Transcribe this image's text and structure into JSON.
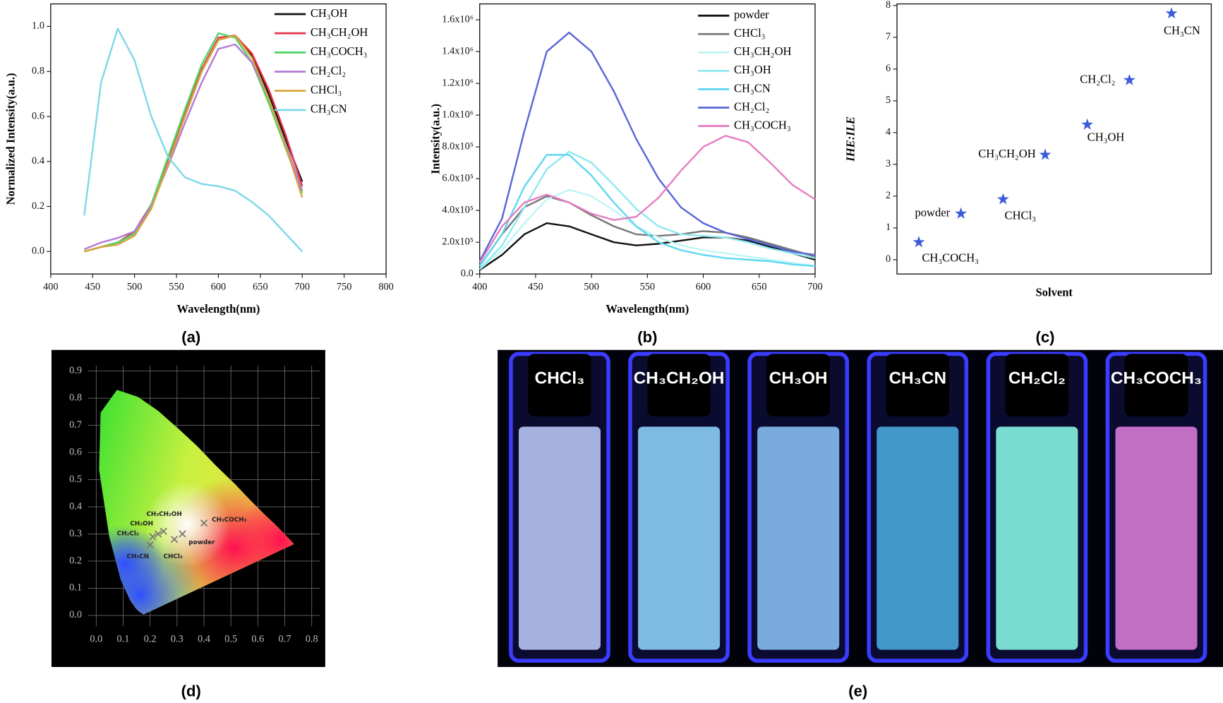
{
  "chart_data": [
    {
      "type": "line",
      "caption": "(a)",
      "x_label": "Wavelength(nm)",
      "y_label": "Normalized Intensity(a.u.)",
      "x": [
        440,
        460,
        480,
        500,
        520,
        540,
        560,
        580,
        600,
        620,
        640,
        660,
        680,
        700
      ],
      "xlim": [
        400,
        800
      ],
      "xticks": [
        400,
        450,
        500,
        550,
        600,
        650,
        700,
        750,
        800
      ],
      "ylim": [
        -0.1,
        1.1
      ],
      "yticks": [
        {
          "value": 0,
          "label": "0.0"
        },
        0.2,
        0.4,
        0.6,
        0.8,
        {
          "value": 1,
          "label": "1.0"
        }
      ],
      "legend": "upper right",
      "series": [
        {
          "name": "CH₃OH",
          "color": "#111111",
          "values": [
            0.0,
            0.02,
            0.04,
            0.08,
            0.2,
            0.4,
            0.6,
            0.8,
            0.94,
            0.96,
            0.87,
            0.7,
            0.5,
            0.31
          ]
        },
        {
          "name": "CH₃CH₂OH",
          "color": "#e8334a",
          "values": [
            0.0,
            0.02,
            0.04,
            0.09,
            0.21,
            0.41,
            0.61,
            0.81,
            0.95,
            0.96,
            0.88,
            0.72,
            0.52,
            0.29
          ]
        },
        {
          "name": "CH₃COCH₃",
          "color": "#4fd66a",
          "values": [
            0.0,
            0.02,
            0.04,
            0.08,
            0.21,
            0.42,
            0.63,
            0.83,
            0.97,
            0.95,
            0.84,
            0.66,
            0.46,
            0.26
          ]
        },
        {
          "name": "CH₂Cl₂",
          "color": "#b57ad6",
          "values": [
            0.01,
            0.04,
            0.06,
            0.09,
            0.2,
            0.38,
            0.57,
            0.75,
            0.9,
            0.92,
            0.84,
            0.68,
            0.48,
            0.27
          ]
        },
        {
          "name": "CHCl₃",
          "color": "#d8a63a",
          "values": [
            0.0,
            0.02,
            0.03,
            0.07,
            0.19,
            0.39,
            0.6,
            0.8,
            0.94,
            0.96,
            0.86,
            0.68,
            0.47,
            0.24
          ]
        },
        {
          "name": "CH₃CN",
          "color": "#7fd8e8",
          "values": [
            0.16,
            0.75,
            0.99,
            0.85,
            0.6,
            0.42,
            0.33,
            0.3,
            0.29,
            0.27,
            0.22,
            0.16,
            0.08,
            0.0
          ]
        }
      ]
    },
    {
      "type": "line",
      "caption": "(b)",
      "x_label": "Wavelength(nm)",
      "y_label": "Intensity(a.u.)",
      "x": [
        400,
        420,
        440,
        460,
        480,
        500,
        520,
        540,
        560,
        580,
        600,
        620,
        640,
        660,
        680,
        700
      ],
      "xlim": [
        400,
        700
      ],
      "xticks": [
        400,
        450,
        500,
        550,
        600,
        650,
        700
      ],
      "ylim": [
        0,
        1700000
      ],
      "yticks": [
        {
          "value": 0,
          "label": "0.0"
        },
        {
          "value": 200000,
          "label": "2.0x10⁵"
        },
        {
          "value": 400000,
          "label": "4.0x10⁵"
        },
        {
          "value": 600000,
          "label": "6.0x10⁵"
        },
        {
          "value": 800000,
          "label": "8.0x10⁵"
        },
        {
          "value": 1000000,
          "label": "1.0x10⁶"
        },
        {
          "value": 1200000,
          "label": "1.2x10⁶"
        },
        {
          "value": 1400000,
          "label": "1.4x10⁶"
        },
        {
          "value": 1600000,
          "label": "1.6x10⁶"
        }
      ],
      "legend": "upper right",
      "series": [
        {
          "name": "powder",
          "color": "#111111",
          "values": [
            25000,
            120000,
            250000,
            320000,
            300000,
            250000,
            200000,
            180000,
            190000,
            210000,
            230000,
            230000,
            210000,
            170000,
            130000,
            90000
          ]
        },
        {
          "name": "CHCl₃",
          "color": "#777777",
          "values": [
            50000,
            250000,
            420000,
            490000,
            450000,
            370000,
            300000,
            250000,
            240000,
            250000,
            270000,
            260000,
            230000,
            190000,
            150000,
            110000
          ]
        },
        {
          "name": "CH₃CH₂OH",
          "color": "#bff5f5",
          "values": [
            30000,
            150000,
            320000,
            470000,
            530000,
            490000,
            400000,
            300000,
            230000,
            180000,
            150000,
            130000,
            110000,
            90000,
            70000,
            50000
          ]
        },
        {
          "name": "CH₃OH",
          "color": "#8fe8f0",
          "values": [
            30000,
            180000,
            420000,
            660000,
            770000,
            700000,
            560000,
            410000,
            300000,
            250000,
            240000,
            230000,
            200000,
            160000,
            130000,
            100000
          ]
        },
        {
          "name": "CH₃CN",
          "color": "#5fd8f0",
          "values": [
            50000,
            250000,
            550000,
            750000,
            750000,
            620000,
            450000,
            300000,
            200000,
            150000,
            120000,
            100000,
            90000,
            80000,
            60000,
            50000
          ]
        },
        {
          "name": "CH₂Cl₂",
          "color": "#5a66d8",
          "values": [
            80000,
            350000,
            900000,
            1400000,
            1520000,
            1400000,
            1150000,
            850000,
            600000,
            420000,
            320000,
            260000,
            220000,
            180000,
            140000,
            120000
          ]
        },
        {
          "name": "CH₃COCH₃",
          "color": "#e67fc0",
          "values": [
            70000,
            300000,
            450000,
            500000,
            450000,
            380000,
            340000,
            360000,
            480000,
            650000,
            800000,
            870000,
            830000,
            700000,
            560000,
            470000
          ]
        }
      ]
    },
    {
      "type": "scatter",
      "caption": "(c)",
      "x_label": "Solvent",
      "y_label": "IHE:ILE",
      "categories": [
        "CH₃COCH₃",
        "powder",
        "CHCl₃",
        "CH₃CH₂OH",
        "CH₃OH",
        "CH₂Cl₂",
        "CH₃CN"
      ],
      "values": [
        0.55,
        1.45,
        1.9,
        3.3,
        4.25,
        5.65,
        7.75
      ],
      "color": "#3b5bdb",
      "ylim": [
        -0.45,
        8.05
      ],
      "yticks": [
        0,
        1,
        2,
        3,
        4,
        5,
        6,
        7,
        8
      ]
    },
    {
      "type": "scatter",
      "caption": "(d)",
      "grid": true,
      "labels": [
        "CH₃CN",
        "CH₂Cl₂",
        "CH₃OH",
        "CH₃CH₂OH",
        "CH₃COCH₃",
        "powder",
        "CHCl₃"
      ],
      "x": [
        0.2,
        0.21,
        0.23,
        0.25,
        0.4,
        0.32,
        0.29
      ],
      "y": [
        0.26,
        0.29,
        0.3,
        0.31,
        0.34,
        0.3,
        0.28
      ],
      "color": "#777777",
      "xlim": [
        -0.03,
        0.83
      ],
      "ylim": [
        -0.04,
        0.92
      ],
      "xticks": [
        {
          "value": 0,
          "label": "0.0"
        },
        0.1,
        0.2,
        0.3,
        0.4,
        0.5,
        0.6,
        0.7,
        0.8
      ],
      "yticks": [
        {
          "value": 0,
          "label": "0.0"
        },
        0.1,
        0.2,
        0.3,
        0.4,
        0.5,
        0.6,
        0.7,
        0.8,
        0.9
      ]
    }
  ],
  "photo": {
    "caption": "(e)",
    "labels": [
      "CHCl₃",
      "CH₃CH₂OH",
      "CH₃OH",
      "CH₃CN",
      "CH₂Cl₂",
      "CH₃COCH₃"
    ]
  }
}
